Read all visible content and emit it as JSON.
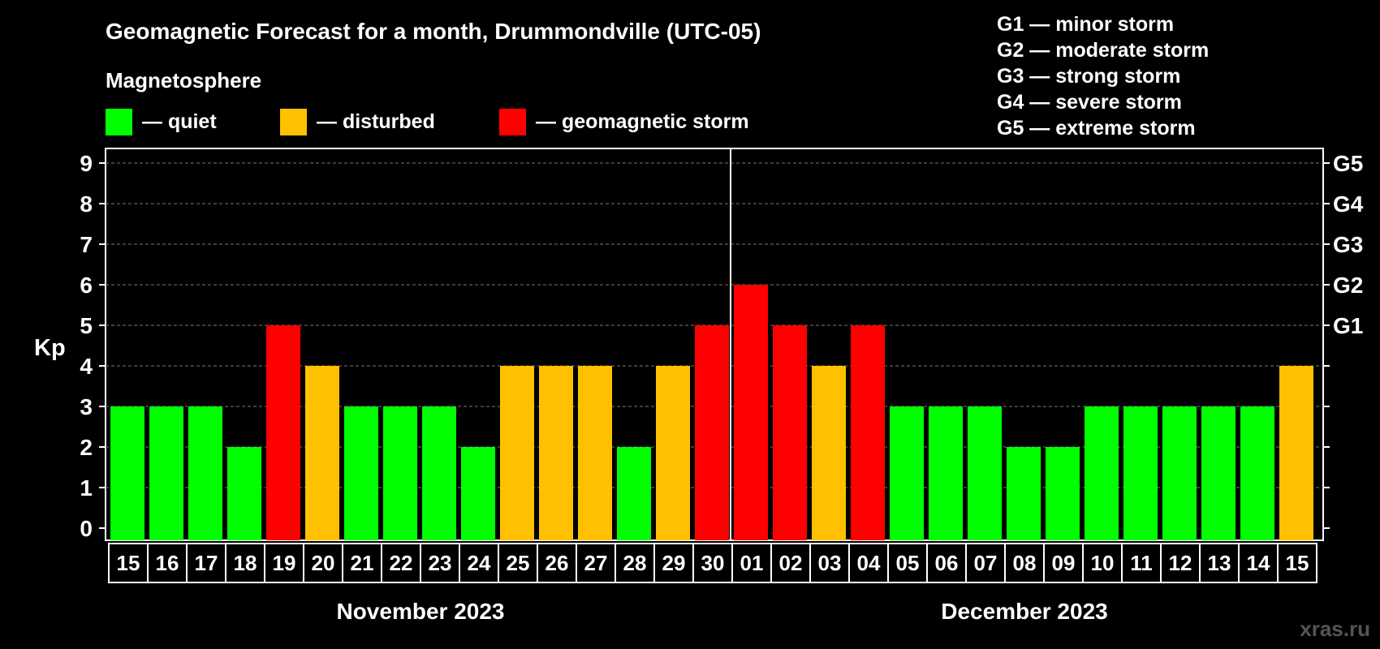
{
  "chart_data": {
    "type": "bar",
    "title": "Geomagnetic Forecast for a month, Drummondville (UTC-05)",
    "legend_title": "Magnetosphere",
    "legend": [
      {
        "label": "— quiet",
        "color": "#00ff00"
      },
      {
        "label": "— disturbed",
        "color": "#ffc000"
      },
      {
        "label": "— geomagnetic storm",
        "color": "#ff0000"
      }
    ],
    "storm_scale": [
      "G1 — minor storm",
      "G2 — moderate storm",
      "G3 — strong storm",
      "G4 — severe storm",
      "G5 — extreme storm"
    ],
    "ylabel": "Kp",
    "ylim": [
      0,
      9
    ],
    "yticks": [
      "0",
      "1",
      "2",
      "3",
      "4",
      "5",
      "6",
      "7",
      "8",
      "9"
    ],
    "right_ticks": [
      {
        "kp": 5,
        "label": "G1"
      },
      {
        "kp": 6,
        "label": "G2"
      },
      {
        "kp": 7,
        "label": "G3"
      },
      {
        "kp": 8,
        "label": "G4"
      },
      {
        "kp": 9,
        "label": "G5"
      }
    ],
    "categories": [
      "15",
      "16",
      "17",
      "18",
      "19",
      "20",
      "21",
      "22",
      "23",
      "24",
      "25",
      "26",
      "27",
      "28",
      "29",
      "30",
      "01",
      "02",
      "03",
      "04",
      "05",
      "06",
      "07",
      "08",
      "09",
      "10",
      "11",
      "12",
      "13",
      "14",
      "15"
    ],
    "values": [
      3,
      3,
      3,
      2,
      5,
      4,
      3,
      3,
      3,
      2,
      4,
      4,
      4,
      2,
      4,
      5,
      6,
      5,
      4,
      5,
      3,
      3,
      3,
      2,
      2,
      3,
      3,
      3,
      3,
      3,
      4
    ],
    "months": [
      {
        "label": "November 2023",
        "days": 16
      },
      {
        "label": "December 2023",
        "days": 15
      }
    ],
    "grid": true,
    "colors": {
      "quiet": "#00ff00",
      "disturbed": "#ffc000",
      "storm": "#ff0000"
    }
  },
  "watermark": "xras.ru"
}
